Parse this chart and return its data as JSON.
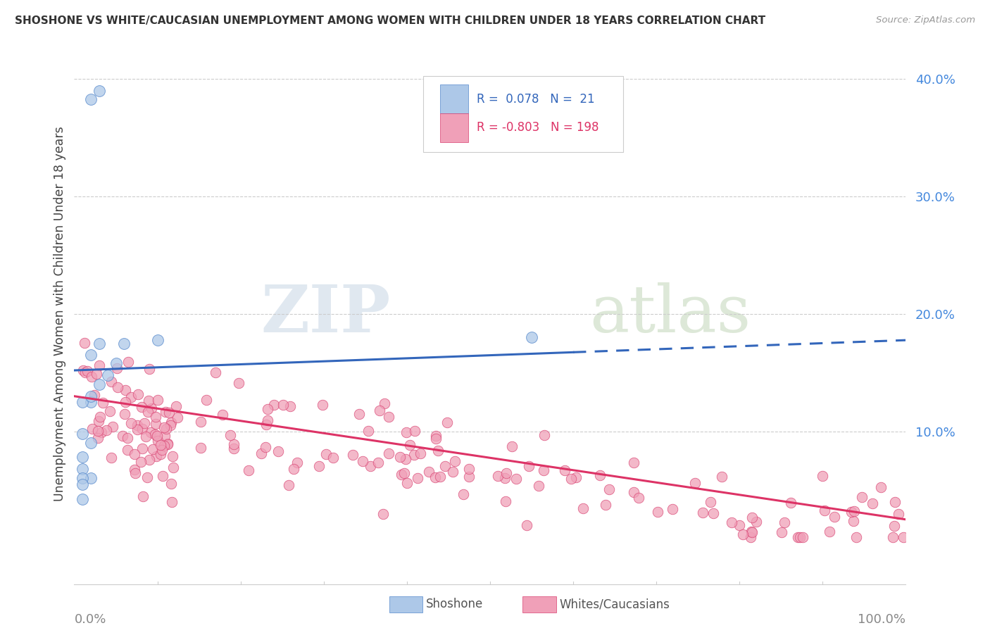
{
  "title": "SHOSHONE VS WHITE/CAUCASIAN UNEMPLOYMENT AMONG WOMEN WITH CHILDREN UNDER 18 YEARS CORRELATION CHART",
  "source": "Source: ZipAtlas.com",
  "ylabel": "Unemployment Among Women with Children Under 18 years",
  "xlim": [
    0,
    1.0
  ],
  "ylim": [
    -0.03,
    0.43
  ],
  "ytick_vals": [
    0.1,
    0.2,
    0.3,
    0.4
  ],
  "ytick_labels": [
    "10.0%",
    "20.0%",
    "30.0%",
    "40.0%"
  ],
  "shoshone_fill": "#adc8e8",
  "shoshone_edge": "#5588cc",
  "white_fill": "#f0a0b8",
  "white_edge": "#d84070",
  "shoshone_line_color": "#3366bb",
  "white_line_color": "#dd3366",
  "R_shoshone": 0.078,
  "N_shoshone": 21,
  "R_white": -0.803,
  "N_white": 198,
  "watermark_zip": "ZIP",
  "watermark_atlas": "atlas",
  "grid_color": "#cccccc",
  "tick_color": "#aaaaaa",
  "ylabel_color": "#444444",
  "ytick_color": "#4488dd",
  "source_color": "#999999",
  "title_color": "#333333",
  "xlabel_color": "#888888",
  "shoshone_pts_x": [
    0.02,
    0.03,
    0.01,
    0.02,
    0.01,
    0.01,
    0.02,
    0.01,
    0.02,
    0.03,
    0.04,
    0.05,
    0.02,
    0.03,
    0.06,
    0.1,
    0.55,
    0.01,
    0.01,
    0.02,
    0.01
  ],
  "shoshone_pts_y": [
    0.383,
    0.39,
    0.042,
    0.06,
    0.068,
    0.078,
    0.09,
    0.098,
    0.125,
    0.14,
    0.148,
    0.158,
    0.165,
    0.175,
    0.175,
    0.178,
    0.18,
    0.125,
    0.06,
    0.13,
    0.055
  ]
}
